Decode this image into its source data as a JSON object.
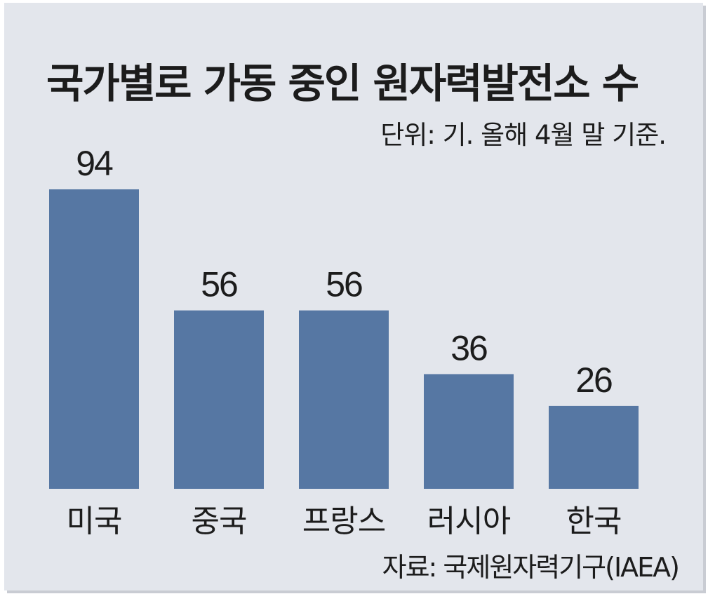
{
  "chart_data": {
    "type": "bar",
    "title": "국가별로 가동 중인 원자력발전소 수",
    "unit_note": "단위: 기. 올해 4월 말 기준.",
    "source": "자료: 국제원자력기구(IAEA)",
    "categories": [
      "미국",
      "중국",
      "프랑스",
      "러시아",
      "한국"
    ],
    "values": [
      94,
      56,
      56,
      36,
      26
    ],
    "value_labels": [
      "94",
      "56",
      "56",
      "36",
      "26"
    ],
    "ylim": [
      0,
      94
    ],
    "grid": false,
    "legend": "none",
    "colors": {
      "bar": "#5677a3",
      "background": "#e3e6ec",
      "text": "#1c1c1c"
    }
  }
}
